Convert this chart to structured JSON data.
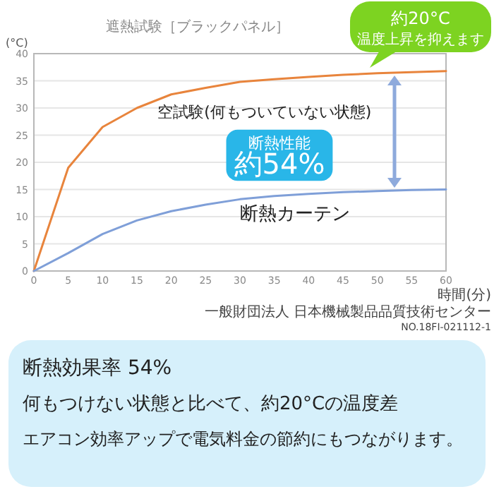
{
  "chart_data": {
    "type": "line",
    "title": "遮熱試験［ブラックパネル］",
    "xlabel": "時間(分)",
    "ylabel": "(°C)",
    "x": [
      0,
      5,
      10,
      15,
      20,
      25,
      30,
      35,
      40,
      45,
      50,
      55,
      60
    ],
    "xlim": [
      0,
      60
    ],
    "xticks": [
      0,
      5,
      10,
      15,
      20,
      25,
      30,
      35,
      40,
      45,
      50,
      55,
      60
    ],
    "ylim": [
      0,
      40
    ],
    "yticks": [
      0,
      5,
      10,
      15,
      20,
      25,
      30,
      35,
      40
    ],
    "grid": "y",
    "series": [
      {
        "name": "空試験(何もついていない状態)",
        "color": "#e8843c",
        "values": [
          0,
          19,
          26.5,
          30,
          32.5,
          33.7,
          34.8,
          35.3,
          35.7,
          36.1,
          36.4,
          36.6,
          36.8
        ]
      },
      {
        "name": "断熱カーテン",
        "color": "#7f9fd8",
        "values": [
          0,
          3.3,
          6.8,
          9.3,
          11,
          12.2,
          13.2,
          13.8,
          14.2,
          14.5,
          14.7,
          14.9,
          15
        ]
      }
    ],
    "annotations": [
      "約20°C",
      "温度上昇を抑えます",
      "断熱性能",
      "約54%",
      "一般財団法人 日本機械製品品質技術センター",
      "NO.18FI-021112-1",
      "断熱効果率 54%",
      "何もつけない状態と比べて、約20°Cの温度差",
      "エアコン効率アップで電気料金の節約にもつながります。"
    ]
  }
}
